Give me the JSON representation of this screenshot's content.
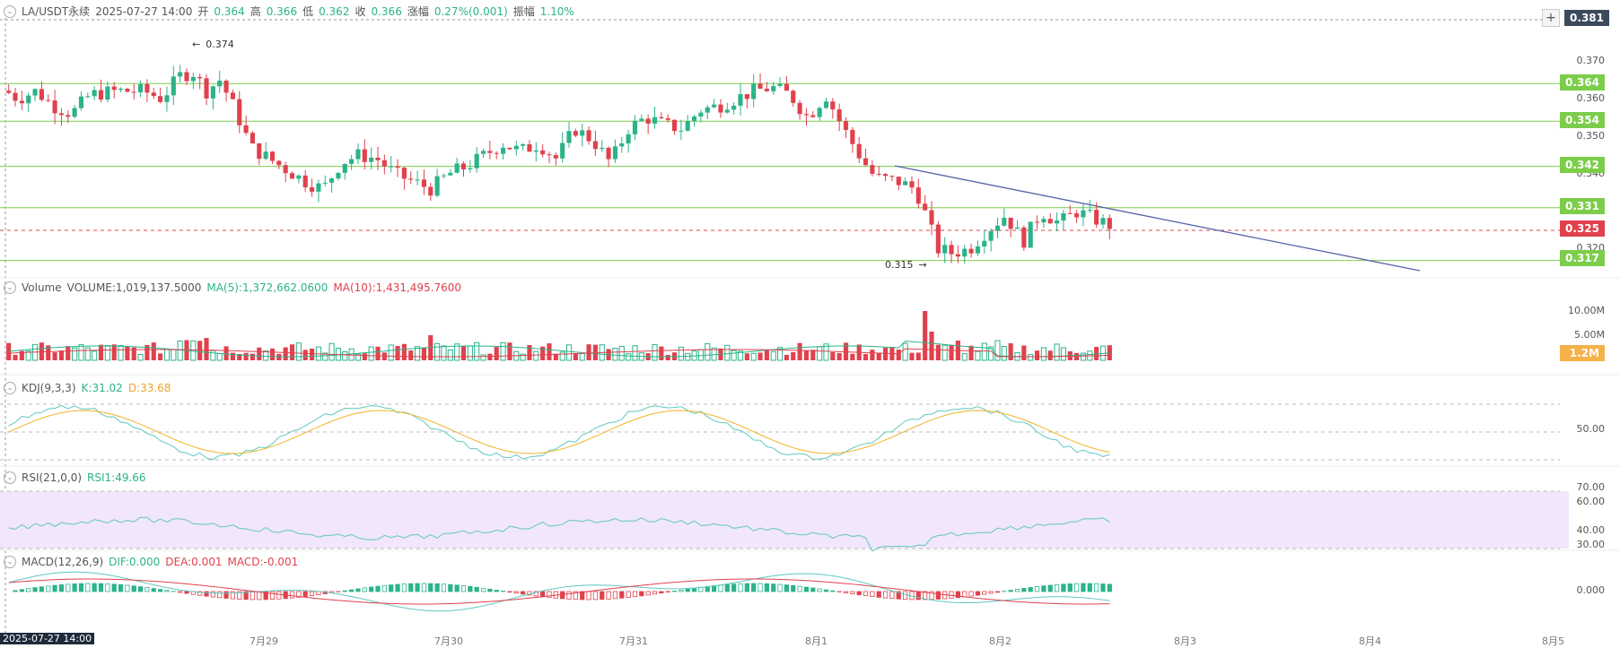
{
  "header": {
    "symbol": "LA/USDT永续",
    "datetime": "2025-07-27 14:00",
    "open_label": "开",
    "open": "0.364",
    "high_label": "高",
    "high": "0.366",
    "low_label": "低",
    "low": "0.362",
    "close_label": "收",
    "close": "0.366",
    "change_label": "涨幅",
    "change": "0.27%(0.001)",
    "amp_label": "振幅",
    "amp": "1.10%"
  },
  "price_axis": {
    "top_tag": "0.381",
    "ticks": [
      "0.370",
      "0.360",
      "0.350",
      "0.340",
      "0.320"
    ],
    "level_tags": [
      "0.364",
      "0.354",
      "0.342",
      "0.331",
      "0.317"
    ],
    "current_tag": "0.325"
  },
  "annotations": {
    "high": "0.374",
    "low": "0.315"
  },
  "volume": {
    "title": "Volume",
    "value": "VOLUME:1,019,137.5000",
    "ma5": "MA(5):1,372,662.0600",
    "ma10": "MA(10):1,431,495.7600",
    "ticks": [
      "10.00M",
      "5.00M"
    ],
    "current_tag": "1.2M"
  },
  "kdj": {
    "title": "KDJ(9,3,3)",
    "k": "K:31.02",
    "d": "D:33.68",
    "tick": "50.00"
  },
  "rsi": {
    "title": "RSI(21,0,0)",
    "rsi1": "RSI1:49.66",
    "ticks": [
      "70.00",
      "60.00",
      "40.00",
      "30.00"
    ]
  },
  "macd": {
    "title": "MACD(12,26,9)",
    "dif": "DIF:0.000",
    "dea": "DEA:0.001",
    "macd": "MACD:-0.001",
    "tick": "0.000"
  },
  "x_axis": {
    "current": "2025-07-27 14:00",
    "labels": [
      "7月29",
      "7月30",
      "7月31",
      "8月1",
      "8月2",
      "8月3",
      "8月4",
      "8月5"
    ]
  },
  "colors": {
    "up": "#2bb38a",
    "down": "#e0414d",
    "level": "#7ccd4a",
    "trend": "#5864a8",
    "k": "#5fc8c0",
    "d": "#f0b429",
    "rsi_band": "#f1e6fb"
  },
  "chart_data": {
    "type": "candlestick",
    "support_resistance": [
      0.364,
      0.354,
      0.342,
      0.331,
      0.317
    ],
    "current_price": 0.325,
    "high_marker": 0.374,
    "low_marker": 0.315
  }
}
